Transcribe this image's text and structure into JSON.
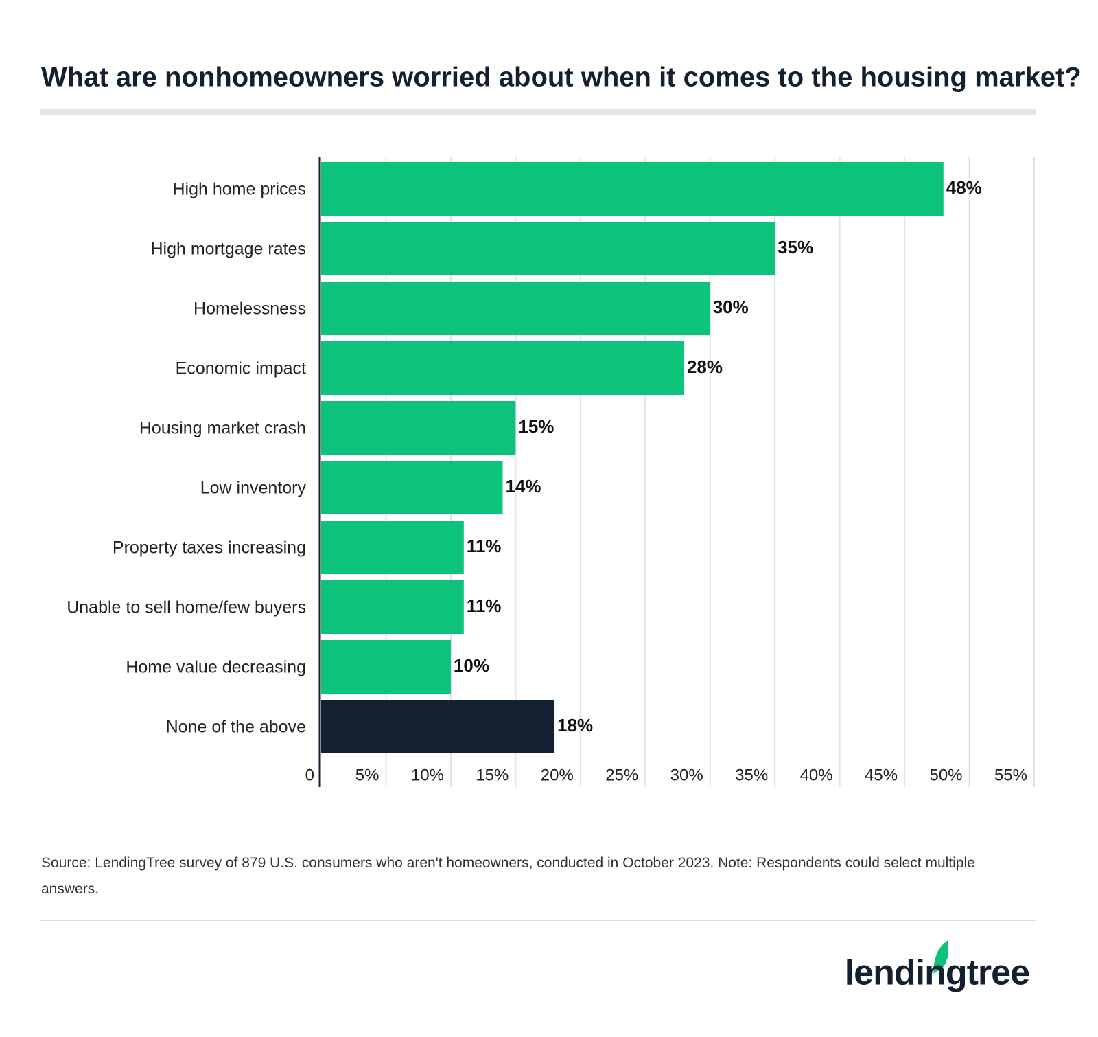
{
  "chart_data": {
    "type": "bar",
    "orientation": "horizontal",
    "title": "What are nonhomeowners worried about when it comes to the housing market?",
    "categories": [
      "High home prices",
      "High mortgage rates",
      "Homelessness",
      "Economic impact",
      "Housing market crash",
      "Low inventory",
      "Property taxes increasing",
      "Unable to sell home/few buyers",
      "Home value decreasing",
      "None of the above"
    ],
    "values": [
      48,
      35,
      30,
      28,
      15,
      14,
      11,
      11,
      10,
      18
    ],
    "value_labels": [
      "48%",
      "35%",
      "30%",
      "28%",
      "15%",
      "14%",
      "11%",
      "11%",
      "10%",
      "18%"
    ],
    "colors": [
      "#0dc27a",
      "#0dc27a",
      "#0dc27a",
      "#0dc27a",
      "#0dc27a",
      "#0dc27a",
      "#0dc27a",
      "#0dc27a",
      "#0dc27a",
      "#13202f"
    ],
    "xlim": [
      0,
      55
    ],
    "xticks": [
      0,
      {
        "value": 5,
        "label": "5%"
      },
      {
        "value": 10,
        "label": "10%"
      },
      {
        "value": 15,
        "label": "15%"
      },
      {
        "value": 20,
        "label": "20%"
      },
      {
        "value": 25,
        "label": "25%"
      },
      {
        "value": 30,
        "label": "30%"
      },
      {
        "value": 35,
        "label": "35%"
      },
      {
        "value": 40,
        "label": "40%"
      },
      {
        "value": 45,
        "label": "45%"
      },
      {
        "value": 50,
        "label": "50%"
      },
      {
        "value": 55,
        "label": "55%"
      }
    ],
    "grid": true
  },
  "footer": {
    "source": "Source: LendingTree survey of 879 U.S. consumers who aren't homeowners, conducted in October 2023. Note: Respondents could select multiple answers.",
    "logo": "lendingtree"
  }
}
